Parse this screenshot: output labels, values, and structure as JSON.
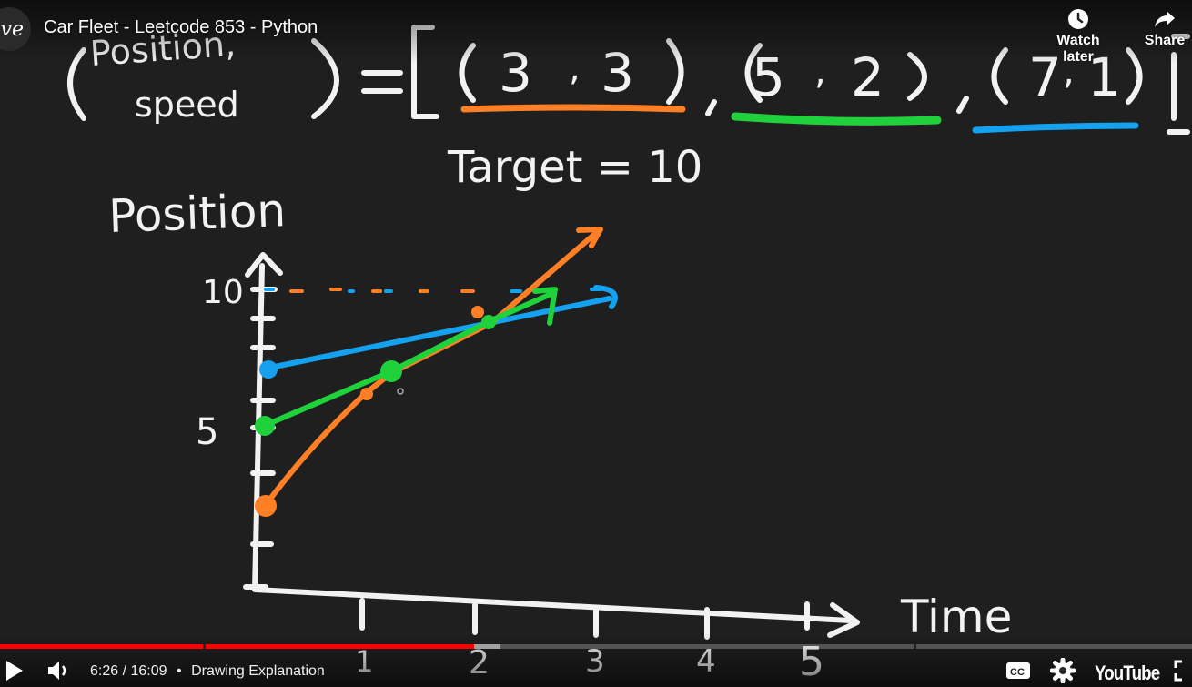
{
  "header": {
    "channel_avatar_text": "ve",
    "title": "Car Fleet - Leetcode 853 - Python",
    "watch_later_label": "Watch later",
    "share_label": "Share"
  },
  "whiteboard": {
    "pair_label_line1": "Position,",
    "pair_label_line2": "speed",
    "pair1_position": "3",
    "pair1_speed": "3",
    "pair2_position": "5",
    "pair2_speed": "2",
    "pair3_position": "7",
    "pair3_speed": "1",
    "target_text": "Target = 10",
    "y_axis_label": "Position",
    "x_axis_label": "Time",
    "y_tick_10": "10",
    "y_tick_5": "5",
    "x_ticks": [
      "1",
      "2",
      "3",
      "4",
      "5"
    ],
    "colors": {
      "car1": "#ff7f27",
      "car2": "#1fd13a",
      "car3": "#13a1f0",
      "chalk": "#f2f2f2"
    }
  },
  "player": {
    "current_time": "6:26",
    "duration": "16:09",
    "separator": "/",
    "chapter_title": "Drawing Explanation",
    "played_fraction": 0.398,
    "buffered_fraction": 0.42,
    "brand_label": "YouTube"
  }
}
